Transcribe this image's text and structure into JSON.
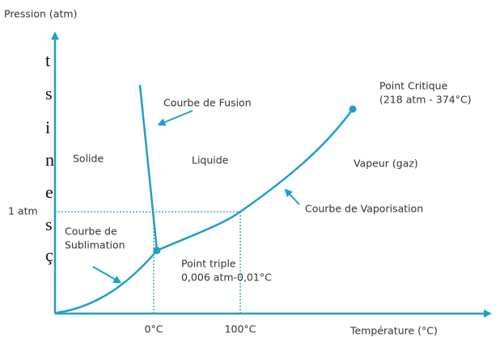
{
  "diagram": {
    "y_axis_label": "Pression (atm)",
    "x_axis_label": "Température (°C)",
    "tick_1atm": "1 atm",
    "tick_0c": "0°C",
    "tick_100c": "100°C",
    "regions": {
      "solid": "Solide",
      "liquid": "Liquide",
      "vapor": "Vapeur (gaz)"
    },
    "fusion_label": "Courbe de Fusion",
    "vaporisation_label": "Courbe de Vaporisation",
    "sublimation_label": [
      "Courbe de",
      "Sublimation"
    ],
    "critical_point": [
      "Point Critique",
      "(218 atm - 374°C)"
    ],
    "triple_point": [
      "Point triple",
      "0,006 atm-0,01°C"
    ],
    "side_fragments": [
      "t",
      "s",
      "i",
      "n",
      "e",
      "s",
      "ç"
    ]
  }
}
